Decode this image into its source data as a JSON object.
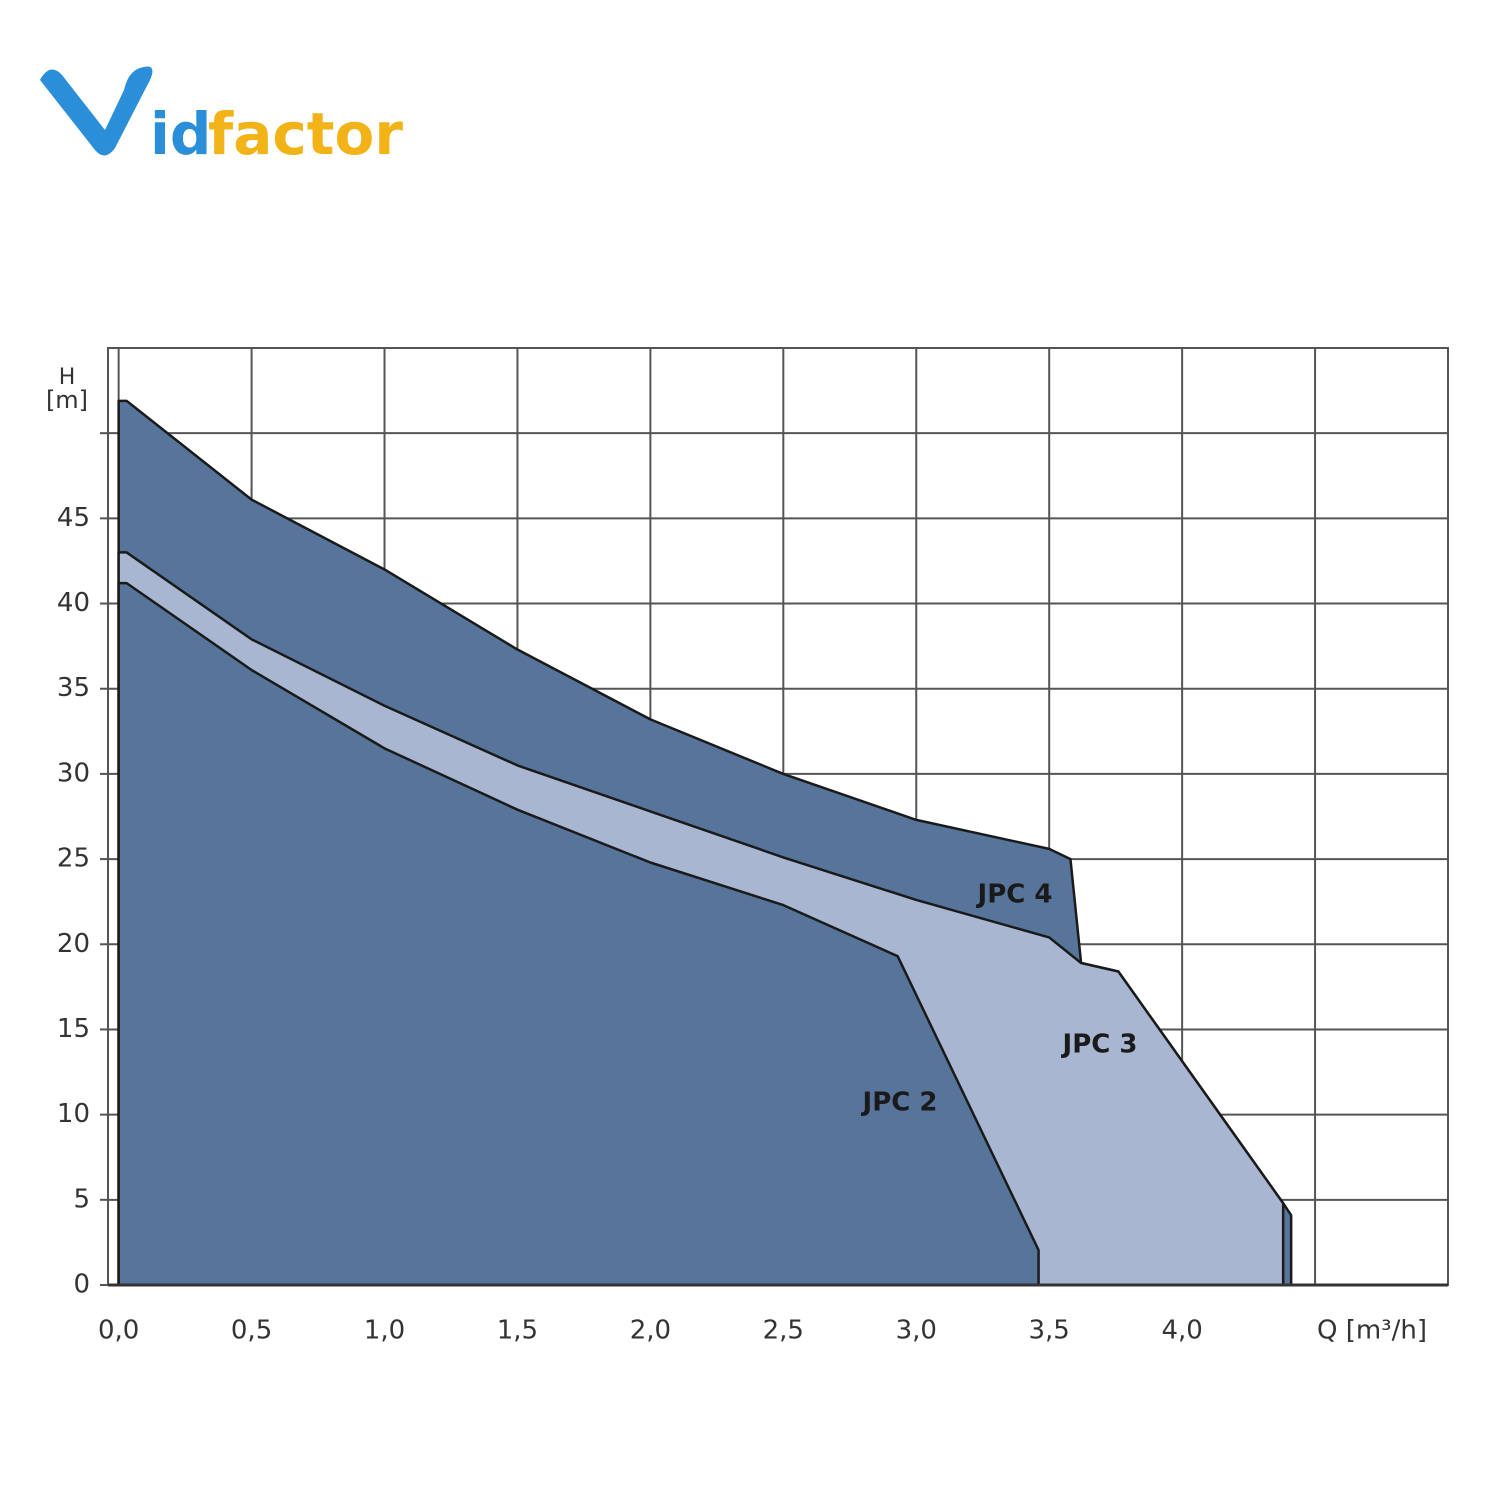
{
  "logo": [
    "id",
    "factor"
  ],
  "chart_data": {
    "type": "area",
    "ylabel": [
      "H",
      "[m]"
    ],
    "xlabel": "Q [m³/h]",
    "xlim": [
      -0.04,
      5
    ],
    "ylim": [
      0,
      55
    ],
    "grid": true,
    "xticks": [
      {
        "value": 0,
        "label": "0,0"
      },
      {
        "value": 0.5,
        "label": "0,5"
      },
      {
        "value": 1,
        "label": "1,0"
      },
      {
        "value": 1.5,
        "label": "1,5"
      },
      {
        "value": 2,
        "label": "2,0"
      },
      {
        "value": 2.5,
        "label": "2,5"
      },
      {
        "value": 3,
        "label": "3,0"
      },
      {
        "value": 3.5,
        "label": "3,5"
      },
      {
        "value": 4,
        "label": "4,0"
      },
      {
        "value": 4.5,
        "label": null
      }
    ],
    "yticks": [
      0,
      5,
      10,
      15,
      20,
      25,
      30,
      35,
      40,
      45,
      {
        "value": 50,
        "label": null
      }
    ],
    "series": [
      {
        "name": "JPC 4",
        "color": "#57759b",
        "x": [
          0,
          0.03,
          0.5,
          1,
          1.5,
          2,
          2.5,
          3,
          3.5,
          3.58,
          3.62,
          3.76,
          4.38,
          4.41,
          4.41
        ],
        "values": [
          51.9,
          51.9,
          46.1,
          42,
          37.3,
          33.2,
          30,
          27.3,
          25.6,
          25,
          18.9,
          18.4,
          4.8,
          4.1,
          0
        ]
      },
      {
        "name": "JPC 3",
        "color": "#a8b6d1",
        "x": [
          0,
          0.03,
          0.5,
          1,
          1.5,
          2,
          2.5,
          3,
          3.5,
          3.62,
          3.76,
          4.38,
          4.38
        ],
        "values": [
          43,
          43,
          37.9,
          34,
          30.5,
          27.8,
          25.1,
          22.6,
          20.4,
          18.9,
          18.4,
          4.8,
          0
        ]
      },
      {
        "name": "JPC 2",
        "color": "#57759b",
        "x": [
          0,
          0.03,
          0.5,
          1,
          1.5,
          2,
          2.5,
          2.93,
          3.46,
          3.46
        ],
        "values": [
          41.2,
          41.2,
          36.1,
          31.5,
          27.9,
          24.8,
          22.3,
          19.3,
          2.05,
          0
        ]
      }
    ]
  }
}
